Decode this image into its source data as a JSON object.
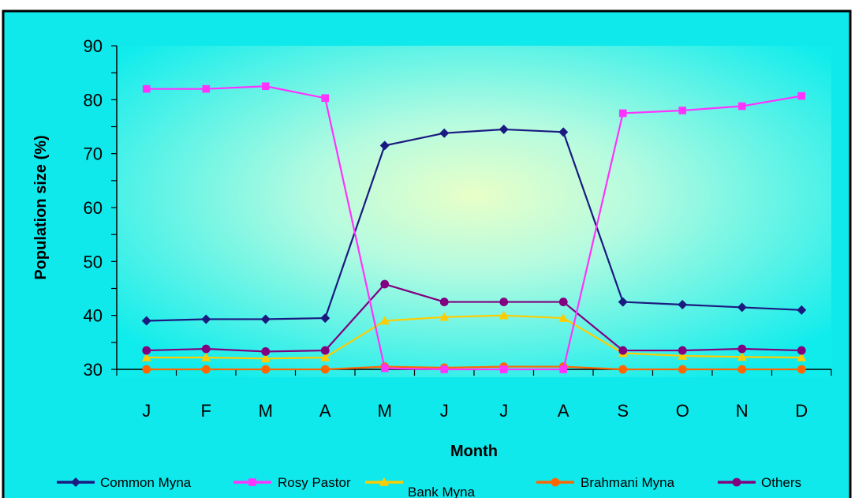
{
  "chart_data": {
    "type": "line",
    "title": "",
    "xlabel": "Month",
    "ylabel": "Population size (%)",
    "ylim": [
      30,
      90
    ],
    "yticks": [
      30,
      40,
      50,
      60,
      70,
      80,
      90
    ],
    "categories": [
      "J",
      "F",
      "M",
      "A",
      "M",
      "J",
      "J",
      "A",
      "S",
      "O",
      "N",
      "D"
    ],
    "grid": false,
    "legend_position": "bottom",
    "background": "cyan radial gradient with pale green-yellow center",
    "series": [
      {
        "name": "Common Myna",
        "color": "#1a1a80",
        "marker": "diamond",
        "values": [
          39.0,
          39.3,
          39.3,
          39.5,
          71.5,
          73.8,
          74.5,
          74.0,
          42.5,
          42.0,
          41.5,
          41.0
        ]
      },
      {
        "name": "Rosy Pastor",
        "color": "#ff33ff",
        "marker": "square",
        "values": [
          82.0,
          82.0,
          82.5,
          80.3,
          30.2,
          30.0,
          30.0,
          30.0,
          77.5,
          78.0,
          78.8,
          80.7
        ]
      },
      {
        "name": "Bank Myna",
        "color": "#ffcc00",
        "marker": "triangle",
        "values": [
          32.2,
          32.2,
          32.0,
          32.2,
          39.0,
          39.7,
          40.0,
          39.5,
          33.0,
          32.5,
          32.3,
          32.2
        ]
      },
      {
        "name": "Brahmani Myna",
        "color": "#ff6600",
        "marker": "circle",
        "values": [
          30.0,
          30.0,
          30.0,
          30.0,
          30.5,
          30.3,
          30.5,
          30.5,
          30.0,
          30.0,
          30.0,
          30.0
        ]
      },
      {
        "name": "Others",
        "color": "#800080",
        "marker": "circle",
        "values": [
          33.5,
          33.8,
          33.3,
          33.5,
          45.8,
          42.5,
          42.5,
          42.5,
          33.5,
          33.5,
          33.8,
          33.5
        ]
      }
    ]
  }
}
